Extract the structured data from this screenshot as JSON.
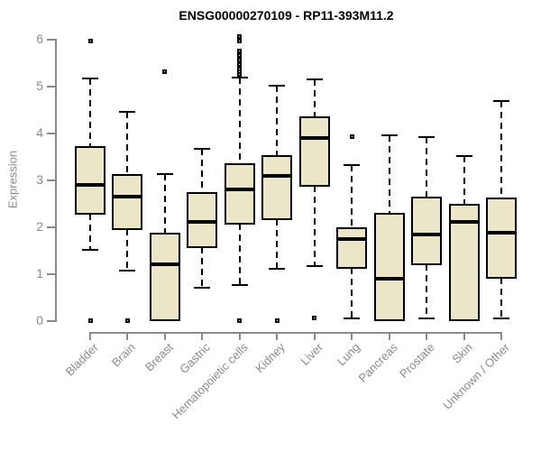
{
  "chart_data": {
    "type": "boxplot",
    "title": "ENSG00000270109 - RP11-393M11.2",
    "ylabel": "Expression",
    "xlabel": "",
    "ylim": [
      0,
      6
    ],
    "yticks": [
      0,
      1,
      2,
      3,
      4,
      5,
      6
    ],
    "grid": false,
    "legend": "none",
    "categories": [
      "Bladder",
      "Brain",
      "Breast",
      "Gastric",
      "Hematopoietic cells",
      "Kidney",
      "Liver",
      "Lung",
      "Pancreas",
      "Prostate",
      "Skin",
      "Unknown / Other"
    ],
    "boxes": [
      {
        "category": "Bladder",
        "whisker_low": 1.5,
        "q1": 2.27,
        "median": 2.88,
        "q3": 3.7,
        "whisker_high": 5.15,
        "outliers": [
          5.95,
          0
        ]
      },
      {
        "category": "Brain",
        "whisker_low": 1.05,
        "q1": 1.95,
        "median": 2.63,
        "q3": 3.1,
        "whisker_high": 4.45,
        "outliers": [
          0
        ]
      },
      {
        "category": "Breast",
        "whisker_low": 0.0,
        "q1": 0.0,
        "median": 1.2,
        "q3": 1.85,
        "whisker_high": 3.12,
        "outliers": [
          5.3
        ]
      },
      {
        "category": "Gastric",
        "whisker_low": 0.7,
        "q1": 1.56,
        "median": 2.1,
        "q3": 2.72,
        "whisker_high": 3.65,
        "outliers": []
      },
      {
        "category": "Hematopoietic cells",
        "whisker_low": 0.75,
        "q1": 2.05,
        "median": 2.79,
        "q3": 3.32,
        "whisker_high": 5.18,
        "outliers": [
          6.05,
          5.95,
          5.75,
          5.65,
          5.55,
          5.5,
          5.45,
          5.4,
          5.35,
          5.3,
          5.25,
          0
        ]
      },
      {
        "category": "Kidney",
        "whisker_low": 1.1,
        "q1": 2.15,
        "median": 3.07,
        "q3": 3.5,
        "whisker_high": 5.0,
        "outliers": [
          0
        ]
      },
      {
        "category": "Liver",
        "whisker_low": 1.15,
        "q1": 2.87,
        "median": 3.88,
        "q3": 4.33,
        "whisker_high": 5.13,
        "outliers": [
          0.05
        ]
      },
      {
        "category": "Lung",
        "whisker_low": 0.04,
        "q1": 1.12,
        "median": 1.73,
        "q3": 1.97,
        "whisker_high": 3.31,
        "outliers": [
          3.92
        ]
      },
      {
        "category": "Pancreas",
        "whisker_low": 0.0,
        "q1": 0.0,
        "median": 0.88,
        "q3": 2.26,
        "whisker_high": 3.95,
        "outliers": []
      },
      {
        "category": "Prostate",
        "whisker_low": 0.04,
        "q1": 1.19,
        "median": 1.83,
        "q3": 2.62,
        "whisker_high": 3.9,
        "outliers": []
      },
      {
        "category": "Skin",
        "whisker_low": 0.0,
        "q1": 0.0,
        "median": 2.1,
        "q3": 2.46,
        "whisker_high": 3.5,
        "outliers": []
      },
      {
        "category": "Unknown / Other",
        "whisker_low": 0.04,
        "q1": 0.9,
        "median": 1.86,
        "q3": 2.6,
        "whisker_high": 4.67,
        "outliers": []
      }
    ],
    "colors": {
      "box_fill": "#ebe6c7",
      "box_line": "#000000",
      "median": "#000000",
      "axis": "#8a8a8a",
      "title": "#000000",
      "background": "#ffffff"
    }
  }
}
